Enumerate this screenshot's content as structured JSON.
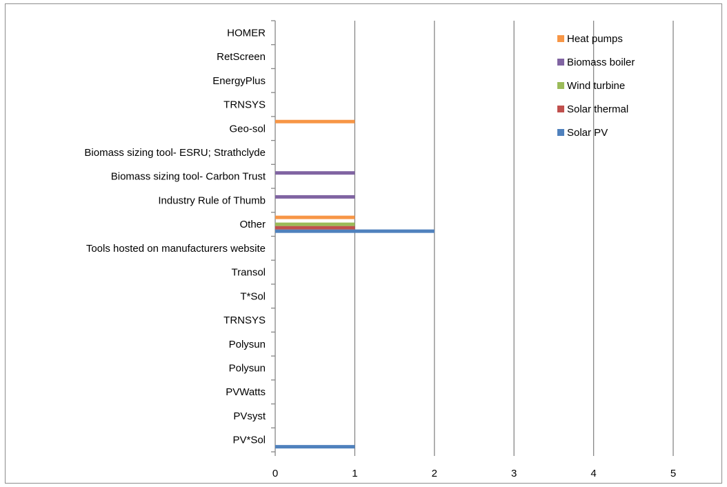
{
  "chart_data": {
    "type": "bar",
    "orientation": "horizontal",
    "categories": [
      "PV*Sol",
      "PVsyst",
      "PVWatts",
      "Polysun",
      "Polysun",
      "TRNSYS",
      "T*Sol",
      "Transol",
      "Tools hosted on manufacturers website",
      "Other",
      "Industry Rule of Thumb",
      "Biomass sizing tool- Carbon Trust",
      "Biomass sizing tool- ESRU; Strathclyde",
      "Geo-sol",
      "TRNSYS",
      "EnergyPlus",
      "RetScreen",
      "HOMER"
    ],
    "series": [
      {
        "name": "Solar PV",
        "color": "#4F81BD",
        "values": [
          1,
          0,
          0,
          0,
          0,
          0,
          0,
          0,
          0,
          2,
          0,
          0,
          0,
          0,
          0,
          0,
          0,
          0
        ]
      },
      {
        "name": "Solar thermal",
        "color": "#C0504D",
        "values": [
          0,
          0,
          0,
          0,
          0,
          0,
          0,
          0,
          0,
          1,
          0,
          0,
          0,
          0,
          0,
          0,
          0,
          0
        ]
      },
      {
        "name": "Wind turbine",
        "color": "#9BBB59",
        "values": [
          0,
          0,
          0,
          0,
          0,
          0,
          0,
          0,
          0,
          1,
          0,
          0,
          0,
          0,
          0,
          0,
          0,
          0
        ]
      },
      {
        "name": "Biomass boiler",
        "color": "#8064A2",
        "values": [
          0,
          0,
          0,
          0,
          0,
          0,
          0,
          0,
          0,
          0,
          1,
          1,
          0,
          0,
          0,
          0,
          0,
          0
        ]
      },
      {
        "name": "Heat pumps",
        "color": "#F79646",
        "values": [
          0,
          0,
          0,
          0,
          0,
          0,
          0,
          0,
          0,
          1,
          0,
          0,
          0,
          1,
          0,
          0,
          0,
          0
        ]
      }
    ],
    "xlim": [
      0,
      5
    ],
    "x_ticks": [
      "0",
      "1",
      "2",
      "3",
      "4",
      "5"
    ],
    "grid": "vertical-major",
    "legend_position": "top-right",
    "legend_order": [
      "Heat pumps",
      "Biomass boiler",
      "Wind turbine",
      "Solar thermal",
      "Solar PV"
    ],
    "title": "",
    "xlabel": "",
    "ylabel": ""
  }
}
